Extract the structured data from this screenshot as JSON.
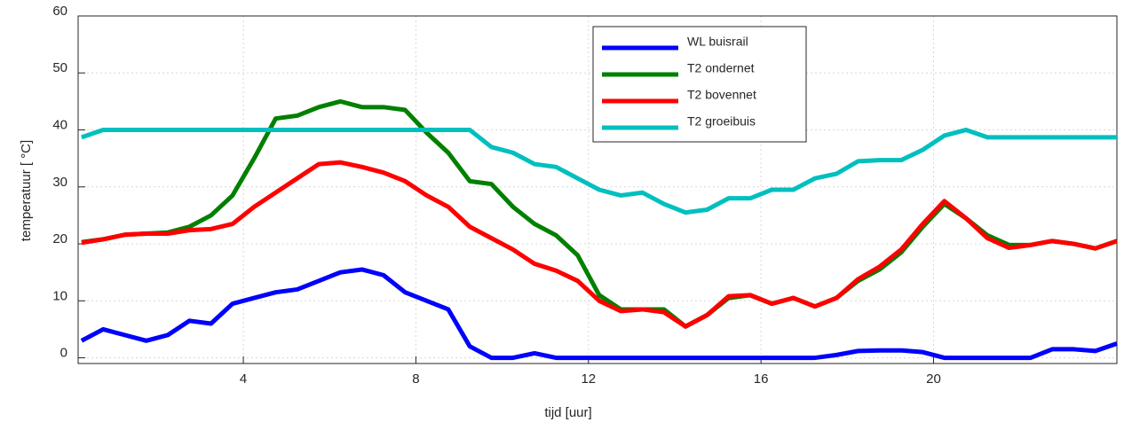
{
  "chart_data": {
    "type": "line",
    "xlabel": "tijd [uur]",
    "ylabel": "temperatuur [ °C]",
    "x": [
      0.25,
      0.75,
      1.25,
      1.75,
      2.25,
      2.75,
      3.25,
      3.75,
      4.25,
      4.75,
      5.25,
      5.75,
      6.25,
      6.75,
      7.25,
      7.75,
      8.25,
      8.75,
      9.25,
      9.75,
      10.25,
      10.75,
      11.25,
      11.75,
      12.25,
      12.75,
      13.25,
      13.75,
      14.25,
      14.75,
      15.25,
      15.75,
      16.25,
      16.75,
      17.25,
      17.75,
      18.25,
      18.75,
      19.25,
      19.75,
      20.25,
      20.75,
      21.25,
      21.75,
      22.25,
      22.75,
      23.25,
      23.75,
      24.25
    ],
    "series": [
      {
        "name": "WL buisrail",
        "color": "#0000ff",
        "values": [
          3,
          5,
          4,
          3,
          4,
          6.5,
          6,
          9.5,
          10.5,
          11.5,
          12,
          13.5,
          15,
          15.5,
          14.5,
          11.5,
          10,
          8.5,
          2,
          0,
          0,
          0.8,
          0,
          0,
          0,
          0,
          0,
          0,
          0,
          0,
          0,
          0,
          0,
          0,
          0,
          0.5,
          1.2,
          1.3,
          1.3,
          1,
          0,
          0,
          0,
          0,
          0,
          1.5,
          1.5,
          1.2,
          2.5
        ]
      },
      {
        "name": "T2 ondernet",
        "color": "#008000",
        "values": [
          20.3,
          20.8,
          21.6,
          21.8,
          22,
          23,
          25,
          28.5,
          35,
          42,
          42.5,
          44,
          45,
          44,
          44,
          43.5,
          39.5,
          36,
          31,
          30.5,
          26.5,
          23.5,
          21.5,
          18,
          11,
          8.5,
          8.5,
          8.5,
          5.5,
          7.5,
          10.5,
          11,
          9.5,
          10.5,
          9,
          10.5,
          13.5,
          15.5,
          18.5,
          23,
          27,
          24.5,
          21.5,
          19.8,
          19.8,
          20.5,
          20,
          19.2,
          20.5
        ]
      },
      {
        "name": "T2 bovennet",
        "color": "#ff0000",
        "values": [
          20.2,
          20.8,
          21.6,
          21.8,
          21.8,
          22.4,
          22.6,
          23.5,
          26.5,
          29,
          31.5,
          34,
          34.3,
          33.5,
          32.5,
          31,
          28.5,
          26.5,
          23,
          21,
          19,
          16.5,
          15.3,
          13.5,
          10,
          8.2,
          8.5,
          8,
          5.5,
          7.5,
          10.8,
          11,
          9.5,
          10.5,
          9,
          10.5,
          13.8,
          16,
          19,
          23.5,
          27.5,
          24.5,
          21,
          19.3,
          19.8,
          20.5,
          20,
          19.2,
          20.5
        ]
      },
      {
        "name": "T2 groeibuis",
        "color": "#00bfbf",
        "values": [
          38.7,
          40,
          40,
          40,
          40,
          40,
          40,
          40,
          40,
          40,
          40,
          40,
          40,
          40,
          40,
          40,
          40,
          40,
          40,
          37,
          36,
          34,
          33.5,
          31.5,
          29.5,
          28.5,
          29,
          27,
          25.5,
          26,
          28,
          28,
          29.5,
          29.5,
          31.5,
          32.3,
          34.5,
          34.7,
          34.7,
          36.5,
          39,
          40,
          38.7,
          38.7,
          38.7,
          38.7,
          38.7,
          38.7,
          38.7
        ]
      }
    ],
    "xlim": [
      0.17,
      24.25
    ],
    "xticks": [
      4,
      8,
      12,
      16,
      20
    ],
    "ylim": [
      -1,
      60
    ],
    "yticks": [
      0,
      10,
      20,
      30,
      40,
      50,
      60
    ],
    "grid": true,
    "legend": "top"
  }
}
